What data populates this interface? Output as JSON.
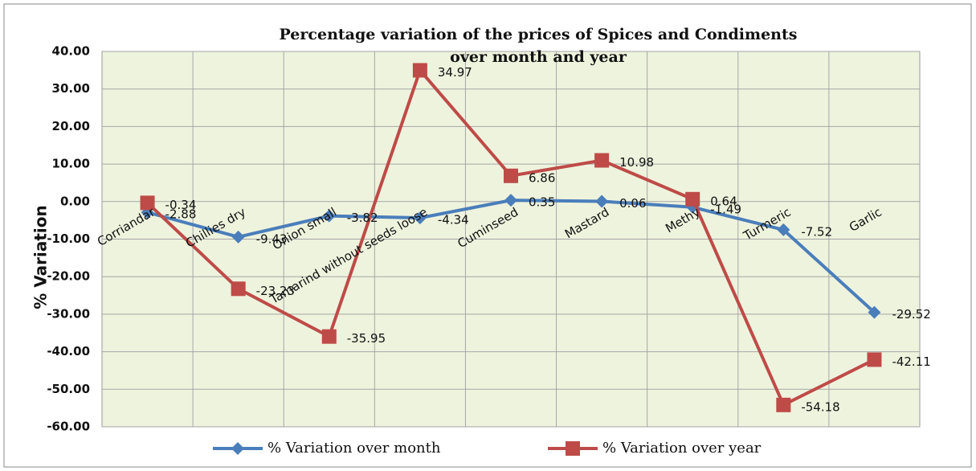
{
  "chart_data": {
    "type": "line",
    "title": [
      "Percentage variation of the prices of Spices and Condiments",
      "over month and year"
    ],
    "y_label": "% Variation",
    "categories": [
      "Corriandar",
      "Chillies dry",
      "Onion small",
      "Tamarind  without seeds loose",
      "Cuminseed",
      "Mastard",
      "Methy",
      "Turmeric",
      "Garlic"
    ],
    "series": [
      {
        "name": "%  Variation over month",
        "color": "#4a7ebb",
        "marker": "diamond",
        "values": [
          -2.88,
          -9.43,
          -3.82,
          -4.34,
          0.35,
          0.06,
          -1.49,
          -7.52,
          -29.52
        ]
      },
      {
        "name": "%  Variation over year",
        "color": "#be4b48",
        "marker": "square",
        "values": [
          -0.34,
          -23.23,
          -35.95,
          34.97,
          6.86,
          10.98,
          0.64,
          -54.18,
          -42.11
        ]
      }
    ],
    "ylim": [
      -60,
      40
    ],
    "yticks": [
      {
        "value": -60,
        "label": "-60.00"
      },
      {
        "value": -50,
        "label": "-50.00"
      },
      {
        "value": -40,
        "label": "-40.00"
      },
      {
        "value": -30,
        "label": "-30.00"
      },
      {
        "value": -20,
        "label": "-20.00"
      },
      {
        "value": -10,
        "label": "-10.00"
      },
      {
        "value": 0,
        "label": "0.00"
      },
      {
        "value": 10,
        "label": "10.00"
      },
      {
        "value": 20,
        "label": "20.00"
      },
      {
        "value": 30,
        "label": "30.00"
      },
      {
        "value": 40,
        "label": "40.00"
      }
    ],
    "grid": true,
    "legend": "bottom"
  }
}
